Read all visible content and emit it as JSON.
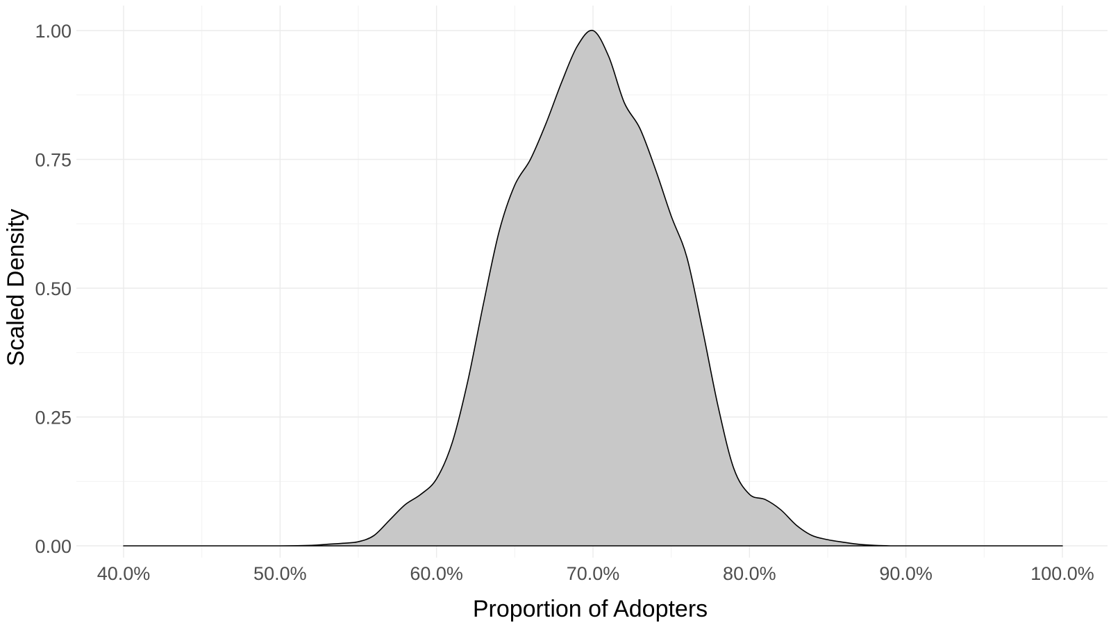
{
  "chart_data": {
    "type": "area",
    "xlabel": "Proportion of Adopters",
    "ylabel": "Scaled Density",
    "xlim": [
      0.4,
      1.0
    ],
    "ylim": [
      0.0,
      1.0
    ],
    "x_ticks": [
      0.4,
      0.5,
      0.6,
      0.7,
      0.8,
      0.9,
      1.0
    ],
    "x_tick_labels": [
      "40.0%",
      "50.0%",
      "60.0%",
      "70.0%",
      "80.0%",
      "90.0%",
      "100.0%"
    ],
    "y_ticks": [
      0.0,
      0.25,
      0.5,
      0.75,
      1.0
    ],
    "y_tick_labels": [
      "0.00",
      "0.25",
      "0.50",
      "0.75",
      "1.00"
    ],
    "grid": true,
    "fill_color": "#c8c8c8",
    "line_color": "#000000",
    "series": [
      {
        "x": [
          0.4,
          0.45,
          0.5,
          0.52,
          0.53,
          0.54,
          0.55,
          0.56,
          0.57,
          0.58,
          0.59,
          0.6,
          0.61,
          0.62,
          0.63,
          0.64,
          0.65,
          0.66,
          0.67,
          0.68,
          0.69,
          0.7,
          0.71,
          0.72,
          0.73,
          0.74,
          0.75,
          0.76,
          0.77,
          0.78,
          0.79,
          0.8,
          0.81,
          0.82,
          0.83,
          0.84,
          0.85,
          0.86,
          0.87,
          0.88,
          0.89,
          0.9,
          0.95,
          1.0
        ],
        "y": [
          0.0,
          0.0,
          0.0,
          0.001,
          0.003,
          0.005,
          0.008,
          0.02,
          0.05,
          0.08,
          0.1,
          0.13,
          0.2,
          0.32,
          0.47,
          0.61,
          0.7,
          0.75,
          0.82,
          0.9,
          0.97,
          1.0,
          0.95,
          0.86,
          0.81,
          0.73,
          0.64,
          0.56,
          0.42,
          0.27,
          0.15,
          0.1,
          0.09,
          0.07,
          0.04,
          0.02,
          0.012,
          0.007,
          0.003,
          0.001,
          0.0,
          0.0,
          0.0,
          0.0
        ]
      }
    ]
  }
}
